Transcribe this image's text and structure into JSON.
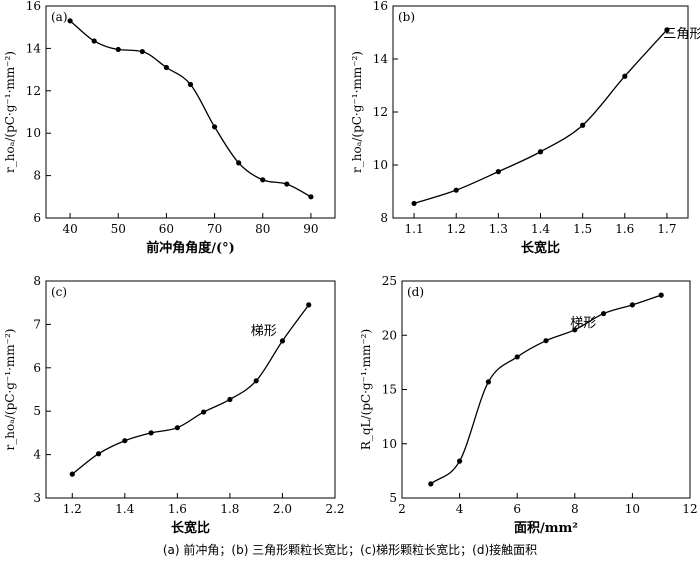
{
  "caption": "(a)  前冲角；(b)  三角形颗粒长宽比；(c)梯形颗粒长宽比；(d)接触面积",
  "chart_data": [
    {
      "type": "line",
      "panel_label": "(a)",
      "xlabel": "前冲角角度/(°)",
      "ylabel": "r_hoₐ/(pC·g⁻¹·mm⁻²)",
      "xlim": [
        35,
        95
      ],
      "ylim": [
        6,
        16
      ],
      "xticks": [
        40,
        50,
        60,
        70,
        80,
        90
      ],
      "yticks": [
        6,
        8,
        10,
        12,
        14,
        16
      ],
      "xticklabels": [
        "40",
        "50",
        "60",
        "70",
        "80",
        "90"
      ],
      "yticklabels": [
        "6",
        "8",
        "10",
        "12",
        "14",
        "16"
      ],
      "annotation": "",
      "x": [
        40,
        45,
        50,
        55,
        60,
        65,
        70,
        75,
        80,
        85,
        90
      ],
      "y": [
        15.3,
        14.35,
        13.95,
        13.85,
        13.1,
        12.3,
        10.3,
        8.6,
        7.8,
        7.6,
        7.0
      ]
    },
    {
      "type": "line",
      "panel_label": "(b)",
      "xlabel": "长宽比",
      "ylabel": "r_hoₐ/(pC·g⁻¹·mm⁻²)",
      "xlim": [
        1.05,
        1.75
      ],
      "ylim": [
        8,
        16
      ],
      "xticks": [
        1.1,
        1.2,
        1.3,
        1.4,
        1.5,
        1.6,
        1.7
      ],
      "yticks": [
        8,
        10,
        12,
        14,
        16
      ],
      "xticklabels": [
        "1.1",
        "1.2",
        "1.3",
        "1.4",
        "1.5",
        "1.6",
        "1.7"
      ],
      "yticklabels": [
        "8",
        "10",
        "12",
        "14",
        "16"
      ],
      "annotation": "三角形",
      "x": [
        1.1,
        1.2,
        1.3,
        1.4,
        1.5,
        1.6,
        1.7
      ],
      "y": [
        8.55,
        9.05,
        9.75,
        10.5,
        11.5,
        13.35,
        15.1
      ]
    },
    {
      "type": "line",
      "panel_label": "(c)",
      "xlabel": "长宽比",
      "ylabel": "r_hoₐ/(pC·g⁻¹·mm⁻²)",
      "xlim": [
        1.1,
        2.2
      ],
      "ylim": [
        3,
        8
      ],
      "xticks": [
        1.2,
        1.4,
        1.6,
        1.8,
        2.0,
        2.2
      ],
      "yticks": [
        3,
        4,
        5,
        6,
        7,
        8
      ],
      "xticklabels": [
        "1.2",
        "1.4",
        "1.6",
        "1.8",
        "2.0",
        "2.2"
      ],
      "yticklabels": [
        "3",
        "4",
        "5",
        "6",
        "7",
        "8"
      ],
      "annotation": "梯形",
      "x": [
        1.2,
        1.3,
        1.4,
        1.5,
        1.6,
        1.7,
        1.8,
        1.9,
        2.0,
        2.1
      ],
      "y": [
        3.55,
        4.02,
        4.32,
        4.5,
        4.62,
        4.98,
        5.27,
        5.7,
        6.62,
        7.45
      ]
    },
    {
      "type": "line",
      "panel_label": "(d)",
      "xlabel": "面积/mm²",
      "ylabel": "R_qL/(pC·g⁻¹·mm⁻²)",
      "xlim": [
        2,
        12
      ],
      "ylim": [
        5,
        25
      ],
      "xticks": [
        2,
        4,
        6,
        8,
        10,
        12
      ],
      "yticks": [
        5,
        10,
        15,
        20,
        25
      ],
      "xticklabels": [
        "2",
        "4",
        "6",
        "8",
        "10",
        "12"
      ],
      "yticklabels": [
        "5",
        "10",
        "15",
        "20",
        "25"
      ],
      "annotation": "梯形",
      "x": [
        3,
        4,
        5,
        6,
        7,
        8,
        9,
        10,
        11
      ],
      "y": [
        6.3,
        8.4,
        15.7,
        18.0,
        19.5,
        20.5,
        22.0,
        22.8,
        23.7
      ]
    }
  ]
}
